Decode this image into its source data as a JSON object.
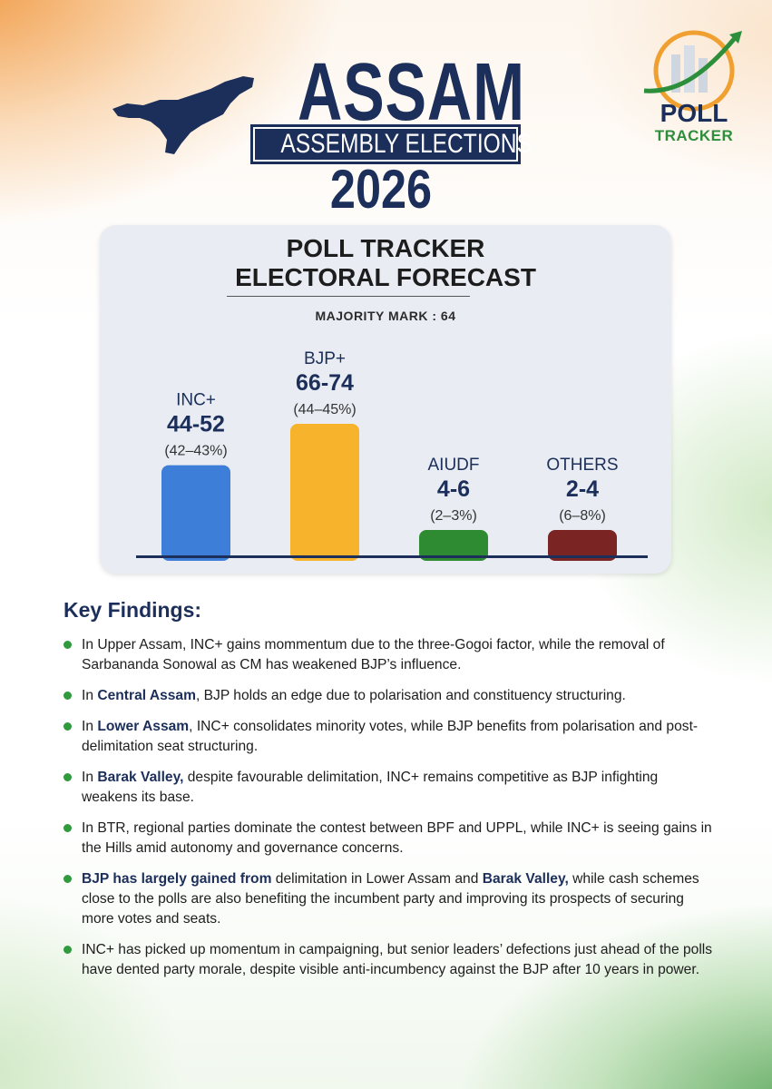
{
  "header": {
    "title_main": "ASSAM",
    "title_sub": "ASSEMBLY ELECTIONS",
    "title_year": "2026"
  },
  "logo": {
    "word1": "POLL",
    "word2": "TRACKER"
  },
  "chart_panel": {
    "title_line1": "POLL TRACKER",
    "title_line2": "ELECTORAL FORECAST",
    "majority_label": "MAJORITY MARK : 64"
  },
  "chart_data": {
    "type": "bar",
    "title": "POLL TRACKER ELECTORAL FORECAST",
    "subtitle": "MAJORITY MARK : 64",
    "categories": [
      "INC+",
      "BJP+",
      "AIUDF",
      "OTHERS"
    ],
    "seat_range_labels": [
      "44-52",
      "66-74",
      "4-6",
      "2-4"
    ],
    "vote_share_labels": [
      "(42–43%)",
      "(44–45%)",
      "(2–3%)",
      "(6–8%)"
    ],
    "values": [
      48,
      70,
      5,
      3
    ],
    "colors": [
      "#3d7fd8",
      "#f6b32b",
      "#2e8b32",
      "#7a2424"
    ],
    "grid": false,
    "legend": "none"
  },
  "key_findings": {
    "title": "Key Findings:",
    "items": [
      {
        "pre": "In Upper Assam, INC+ gains mommentum due to the three-Gogoi factor, while the removal of Sarbananda Sonowal as CM has weakened BJP’s influence.",
        "bold1": "",
        "mid": "",
        "bold2": "",
        "post": ""
      },
      {
        "pre": "In ",
        "bold1": "Central Assam",
        "mid": ", BJP holds an edge due to polarisation and constituency structuring.",
        "bold2": "",
        "post": ""
      },
      {
        "pre": "In ",
        "bold1": "Lower Assam",
        "mid": ", INC+ consolidates minority votes, while BJP benefits from polarisation and post-delimitation seat structuring.",
        "bold2": "",
        "post": ""
      },
      {
        "pre": "In ",
        "bold1": "Barak Valley,",
        "mid": " despite favourable delimitation, INC+ remains competitive as BJP infighting weakens its base.",
        "bold2": "",
        "post": ""
      },
      {
        "pre": "In BTR, regional parties dominate the contest between BPF and UPPL, while INC+ is seeing gains in the Hills amid autonomy and governance concerns.",
        "bold1": "",
        "mid": "",
        "bold2": "",
        "post": ""
      },
      {
        "pre": "",
        "bold1": "BJP has largely gained from",
        "mid": " delimitation in Lower Assam and ",
        "bold2": "Barak Valley,",
        "post": " while cash schemes close to the polls are also benefiting the incumbent party and improving its prospects of securing more votes and seats."
      },
      {
        "pre": "INC+ has picked up momentum in campaigning, but senior leaders’ defections just ahead of the polls have dented party morale, despite visible anti-incumbency against the BJP after 10 years in power.",
        "bold1": "",
        "mid": "",
        "bold2": "",
        "post": ""
      }
    ]
  }
}
